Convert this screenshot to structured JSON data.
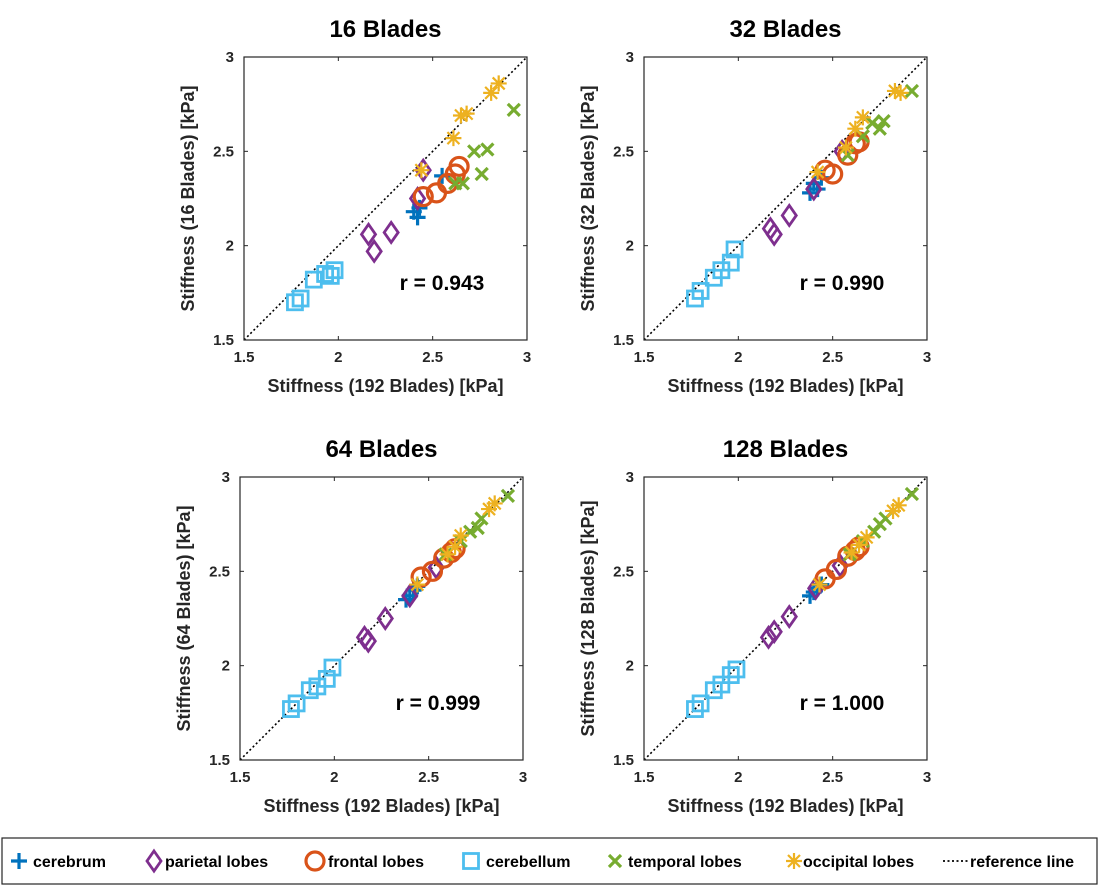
{
  "colors": {
    "cerebrum": "#0072bd",
    "parietal": "#7e2f8e",
    "frontal": "#d95319",
    "cerebellum": "#4dbeee",
    "temporal": "#77ac30",
    "occipital": "#edb120",
    "reference": "#000000"
  },
  "legend": {
    "cerebrum": "cerebrum",
    "parietal": "parietal lobes",
    "frontal": "frontal lobes",
    "cerebellum": "cerebellum",
    "temporal": "temporal lobes",
    "occipital": "occipital lobes",
    "reference": "reference line"
  },
  "chart_data": [
    {
      "type": "scatter",
      "title": "16 Blades",
      "xlabel": "Stiffness (192 Blades) [kPa]",
      "ylabel": "Stiffness (16 Blades) [kPa]",
      "xlim": [
        1.5,
        3
      ],
      "ylim": [
        1.5,
        3
      ],
      "xticks": [
        "1.5",
        "2",
        "2.5",
        "3"
      ],
      "yticks": [
        "1.5",
        "2",
        "2.5",
        "3"
      ],
      "annotation": "r = 0.943",
      "series": [
        {
          "name": "cerebrum",
          "marker": "plus",
          "x": [
            2.4,
            2.42,
            2.43,
            2.55
          ],
          "y": [
            2.18,
            2.15,
            2.2,
            2.37
          ]
        },
        {
          "name": "parietal lobes",
          "marker": "diamond",
          "x": [
            2.16,
            2.19,
            2.28,
            2.42,
            2.45
          ],
          "y": [
            2.06,
            1.97,
            2.07,
            2.25,
            2.4
          ]
        },
        {
          "name": "frontal lobes",
          "marker": "circle",
          "x": [
            2.45,
            2.52,
            2.58,
            2.62,
            2.64
          ],
          "y": [
            2.26,
            2.28,
            2.33,
            2.38,
            2.42
          ]
        },
        {
          "name": "cerebellum",
          "marker": "square",
          "x": [
            1.77,
            1.8,
            1.87,
            1.93,
            1.96,
            1.98
          ],
          "y": [
            1.7,
            1.72,
            1.82,
            1.85,
            1.84,
            1.87
          ]
        },
        {
          "name": "temporal lobes",
          "marker": "x",
          "x": [
            2.62,
            2.66,
            2.72,
            2.76,
            2.79,
            2.93
          ],
          "y": [
            2.33,
            2.33,
            2.5,
            2.38,
            2.51,
            2.72
          ]
        },
        {
          "name": "occipital lobes",
          "marker": "asterisk",
          "x": [
            2.44,
            2.61,
            2.65,
            2.68,
            2.81,
            2.85
          ],
          "y": [
            2.4,
            2.57,
            2.69,
            2.7,
            2.81,
            2.86
          ]
        }
      ]
    },
    {
      "type": "scatter",
      "title": "32 Blades",
      "xlabel": "Stiffness (192 Blades) [kPa]",
      "ylabel": "Stiffness (32 Blades) [kPa]",
      "xlim": [
        1.5,
        3
      ],
      "ylim": [
        1.5,
        3
      ],
      "xticks": [
        "1.5",
        "2",
        "2.5",
        "3"
      ],
      "yticks": [
        "1.5",
        "2",
        "2.5",
        "3"
      ],
      "annotation": "r = 0.990",
      "series": [
        {
          "name": "cerebrum",
          "marker": "plus",
          "x": [
            2.38,
            2.4,
            2.42,
            2.44
          ],
          "y": [
            2.28,
            2.33,
            2.3,
            2.36
          ]
        },
        {
          "name": "parietal lobes",
          "marker": "diamond",
          "x": [
            2.17,
            2.19,
            2.27,
            2.4,
            2.55
          ],
          "y": [
            2.09,
            2.06,
            2.16,
            2.3,
            2.5
          ]
        },
        {
          "name": "frontal lobes",
          "marker": "circle",
          "x": [
            2.46,
            2.5,
            2.58,
            2.62,
            2.64
          ],
          "y": [
            2.4,
            2.38,
            2.48,
            2.54,
            2.55
          ]
        },
        {
          "name": "cerebellum",
          "marker": "square",
          "x": [
            1.77,
            1.8,
            1.87,
            1.91,
            1.96,
            1.98
          ],
          "y": [
            1.72,
            1.76,
            1.83,
            1.87,
            1.91,
            1.98
          ]
        },
        {
          "name": "temporal lobes",
          "marker": "x",
          "x": [
            2.58,
            2.66,
            2.71,
            2.75,
            2.77,
            2.92
          ],
          "y": [
            2.48,
            2.58,
            2.65,
            2.62,
            2.66,
            2.82
          ]
        },
        {
          "name": "occipital lobes",
          "marker": "asterisk",
          "x": [
            2.42,
            2.57,
            2.62,
            2.66,
            2.83,
            2.86
          ],
          "y": [
            2.39,
            2.52,
            2.62,
            2.68,
            2.82,
            2.81
          ]
        }
      ]
    },
    {
      "type": "scatter",
      "title": "64 Blades",
      "xlabel": "Stiffness (192 Blades) [kPa]",
      "ylabel": "Stiffness (64 Blades) [kPa]",
      "xlim": [
        1.5,
        3
      ],
      "ylim": [
        1.5,
        3
      ],
      "xticks": [
        "1.5",
        "2",
        "2.5",
        "3"
      ],
      "yticks": [
        "1.5",
        "2",
        "2.5",
        "3"
      ],
      "annotation": "r = 0.999",
      "series": [
        {
          "name": "cerebrum",
          "marker": "plus",
          "x": [
            2.38,
            2.4,
            2.42,
            2.44
          ],
          "y": [
            2.35,
            2.37,
            2.4,
            2.42
          ]
        },
        {
          "name": "parietal lobes",
          "marker": "diamond",
          "x": [
            2.16,
            2.18,
            2.27,
            2.4,
            2.54
          ],
          "y": [
            2.15,
            2.13,
            2.25,
            2.37,
            2.52
          ]
        },
        {
          "name": "frontal lobes",
          "marker": "circle",
          "x": [
            2.46,
            2.52,
            2.58,
            2.62,
            2.64
          ],
          "y": [
            2.47,
            2.5,
            2.57,
            2.6,
            2.62
          ]
        },
        {
          "name": "cerebellum",
          "marker": "square",
          "x": [
            1.77,
            1.8,
            1.87,
            1.91,
            1.96,
            1.99
          ],
          "y": [
            1.77,
            1.8,
            1.87,
            1.89,
            1.93,
            1.99
          ]
        },
        {
          "name": "temporal lobes",
          "marker": "x",
          "x": [
            2.59,
            2.67,
            2.72,
            2.76,
            2.78,
            2.92
          ],
          "y": [
            2.59,
            2.66,
            2.71,
            2.73,
            2.78,
            2.9
          ]
        },
        {
          "name": "occipital lobes",
          "marker": "asterisk",
          "x": [
            2.44,
            2.6,
            2.64,
            2.67,
            2.82,
            2.85
          ],
          "y": [
            2.43,
            2.59,
            2.63,
            2.69,
            2.83,
            2.86
          ]
        }
      ]
    },
    {
      "type": "scatter",
      "title": "128 Blades",
      "xlabel": "Stiffness (192 Blades) [kPa]",
      "ylabel": "Stiffness (128 Blades) [kPa]",
      "xlim": [
        1.5,
        3
      ],
      "ylim": [
        1.5,
        3
      ],
      "xticks": [
        "1.5",
        "2",
        "2.5",
        "3"
      ],
      "yticks": [
        "1.5",
        "2",
        "2.5",
        "3"
      ],
      "annotation": "r = 1.000",
      "series": [
        {
          "name": "cerebrum",
          "marker": "plus",
          "x": [
            2.38,
            2.4,
            2.42,
            2.44
          ],
          "y": [
            2.37,
            2.39,
            2.41,
            2.43
          ]
        },
        {
          "name": "parietal lobes",
          "marker": "diamond",
          "x": [
            2.16,
            2.19,
            2.27,
            2.41,
            2.54
          ],
          "y": [
            2.15,
            2.18,
            2.26,
            2.41,
            2.53
          ]
        },
        {
          "name": "frontal lobes",
          "marker": "circle",
          "x": [
            2.46,
            2.52,
            2.58,
            2.62,
            2.64
          ],
          "y": [
            2.46,
            2.51,
            2.58,
            2.61,
            2.63
          ]
        },
        {
          "name": "cerebellum",
          "marker": "square",
          "x": [
            1.77,
            1.8,
            1.87,
            1.91,
            1.96,
            1.99
          ],
          "y": [
            1.77,
            1.8,
            1.87,
            1.9,
            1.95,
            1.98
          ]
        },
        {
          "name": "temporal lobes",
          "marker": "x",
          "x": [
            2.59,
            2.66,
            2.72,
            2.75,
            2.78,
            2.92
          ],
          "y": [
            2.59,
            2.66,
            2.71,
            2.75,
            2.78,
            2.91
          ]
        },
        {
          "name": "occipital lobes",
          "marker": "asterisk",
          "x": [
            2.43,
            2.6,
            2.64,
            2.68,
            2.82,
            2.85
          ],
          "y": [
            2.43,
            2.6,
            2.64,
            2.68,
            2.82,
            2.85
          ]
        }
      ]
    }
  ]
}
